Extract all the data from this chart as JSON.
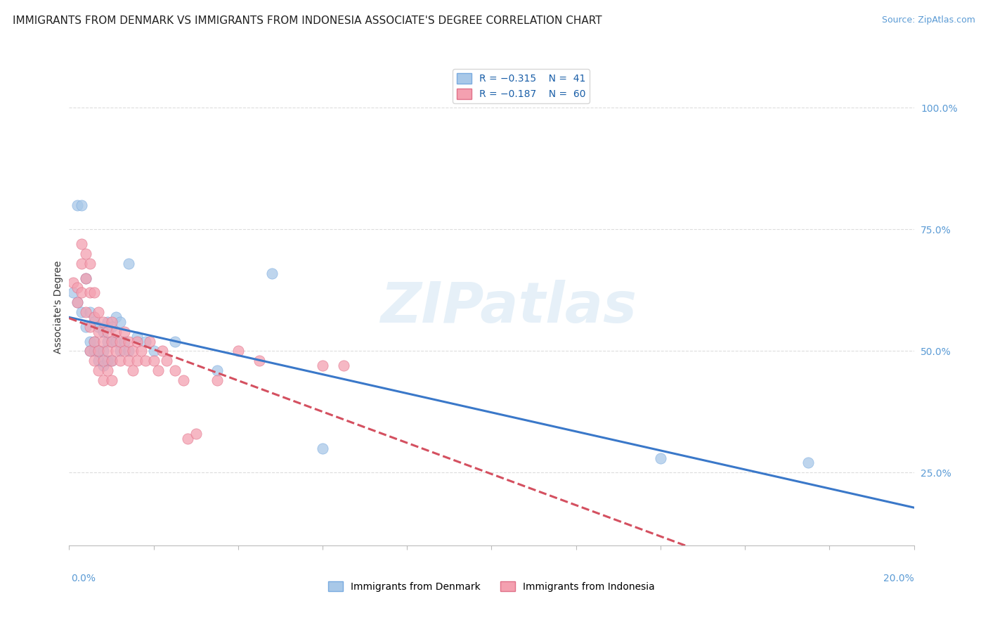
{
  "title": "IMMIGRANTS FROM DENMARK VS IMMIGRANTS FROM INDONESIA ASSOCIATE'S DEGREE CORRELATION CHART",
  "source": "Source: ZipAtlas.com",
  "ylabel": "Associate's Degree",
  "right_ytick_values": [
    0.25,
    0.5,
    0.75,
    1.0
  ],
  "right_ytick_labels": [
    "25.0%",
    "50.0%",
    "75.0%",
    "100.0%"
  ],
  "xmin": 0.0,
  "xmax": 0.2,
  "ymin": 0.1,
  "ymax": 1.08,
  "denmark_color": "#a8c8e8",
  "indonesia_color": "#f4a0b0",
  "denmark_trend_color": "#3a78c9",
  "indonesia_trend_color": "#d45060",
  "watermark": "ZIPatlas",
  "denmark_points": [
    [
      0.001,
      0.62
    ],
    [
      0.002,
      0.6
    ],
    [
      0.002,
      0.8
    ],
    [
      0.003,
      0.58
    ],
    [
      0.003,
      0.8
    ],
    [
      0.004,
      0.65
    ],
    [
      0.004,
      0.55
    ],
    [
      0.005,
      0.58
    ],
    [
      0.005,
      0.52
    ],
    [
      0.005,
      0.5
    ],
    [
      0.006,
      0.56
    ],
    [
      0.006,
      0.52
    ],
    [
      0.006,
      0.5
    ],
    [
      0.007,
      0.55
    ],
    [
      0.007,
      0.5
    ],
    [
      0.007,
      0.48
    ],
    [
      0.008,
      0.54
    ],
    [
      0.008,
      0.5
    ],
    [
      0.008,
      0.47
    ],
    [
      0.009,
      0.56
    ],
    [
      0.009,
      0.52
    ],
    [
      0.009,
      0.48
    ],
    [
      0.01,
      0.55
    ],
    [
      0.01,
      0.52
    ],
    [
      0.01,
      0.48
    ],
    [
      0.011,
      0.57
    ],
    [
      0.011,
      0.52
    ],
    [
      0.012,
      0.56
    ],
    [
      0.012,
      0.5
    ],
    [
      0.013,
      0.52
    ],
    [
      0.014,
      0.68
    ],
    [
      0.014,
      0.5
    ],
    [
      0.016,
      0.53
    ],
    [
      0.018,
      0.52
    ],
    [
      0.02,
      0.5
    ],
    [
      0.025,
      0.52
    ],
    [
      0.035,
      0.46
    ],
    [
      0.048,
      0.66
    ],
    [
      0.06,
      0.3
    ],
    [
      0.14,
      0.28
    ],
    [
      0.175,
      0.27
    ]
  ],
  "indonesia_points": [
    [
      0.001,
      0.64
    ],
    [
      0.002,
      0.63
    ],
    [
      0.002,
      0.6
    ],
    [
      0.003,
      0.72
    ],
    [
      0.003,
      0.68
    ],
    [
      0.003,
      0.62
    ],
    [
      0.004,
      0.7
    ],
    [
      0.004,
      0.65
    ],
    [
      0.004,
      0.58
    ],
    [
      0.005,
      0.68
    ],
    [
      0.005,
      0.62
    ],
    [
      0.005,
      0.55
    ],
    [
      0.005,
      0.5
    ],
    [
      0.006,
      0.62
    ],
    [
      0.006,
      0.57
    ],
    [
      0.006,
      0.52
    ],
    [
      0.006,
      0.48
    ],
    [
      0.007,
      0.58
    ],
    [
      0.007,
      0.54
    ],
    [
      0.007,
      0.5
    ],
    [
      0.007,
      0.46
    ],
    [
      0.008,
      0.56
    ],
    [
      0.008,
      0.52
    ],
    [
      0.008,
      0.48
    ],
    [
      0.008,
      0.44
    ],
    [
      0.009,
      0.54
    ],
    [
      0.009,
      0.5
    ],
    [
      0.009,
      0.46
    ],
    [
      0.01,
      0.56
    ],
    [
      0.01,
      0.52
    ],
    [
      0.01,
      0.48
    ],
    [
      0.01,
      0.44
    ],
    [
      0.011,
      0.54
    ],
    [
      0.011,
      0.5
    ],
    [
      0.012,
      0.52
    ],
    [
      0.012,
      0.48
    ],
    [
      0.013,
      0.54
    ],
    [
      0.013,
      0.5
    ],
    [
      0.014,
      0.52
    ],
    [
      0.014,
      0.48
    ],
    [
      0.015,
      0.5
    ],
    [
      0.015,
      0.46
    ],
    [
      0.016,
      0.52
    ],
    [
      0.016,
      0.48
    ],
    [
      0.017,
      0.5
    ],
    [
      0.018,
      0.48
    ],
    [
      0.019,
      0.52
    ],
    [
      0.02,
      0.48
    ],
    [
      0.021,
      0.46
    ],
    [
      0.022,
      0.5
    ],
    [
      0.023,
      0.48
    ],
    [
      0.025,
      0.46
    ],
    [
      0.027,
      0.44
    ],
    [
      0.028,
      0.32
    ],
    [
      0.03,
      0.33
    ],
    [
      0.035,
      0.44
    ],
    [
      0.04,
      0.5
    ],
    [
      0.045,
      0.48
    ],
    [
      0.06,
      0.47
    ],
    [
      0.065,
      0.47
    ]
  ],
  "grid_color": "#dddddd",
  "background_color": "#ffffff",
  "title_fontsize": 11,
  "source_fontsize": 9,
  "axis_label_fontsize": 10,
  "tick_fontsize": 10,
  "legend_fontsize": 10,
  "legend_R_color": "#1a5fa8",
  "legend_N_color": "#1a5fa8"
}
